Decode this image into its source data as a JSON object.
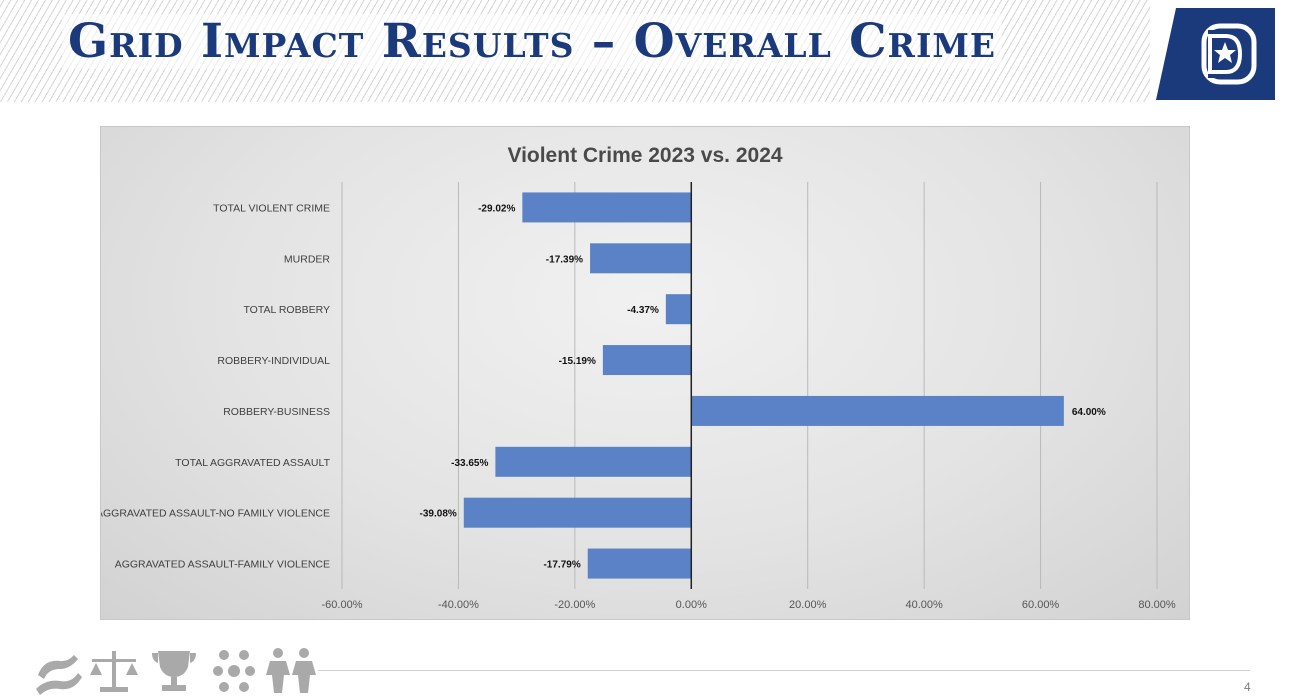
{
  "slide": {
    "title": "Grid Impact Results – Overall Crime",
    "page_number": "4"
  },
  "colors": {
    "title": "#1b3a7c",
    "bar": "#5b82c6",
    "logo_blue": "#1b3a7c"
  },
  "logo": {
    "icon": "dallas-d-star-logo"
  },
  "footer": {
    "icons": [
      "helping-hands-icon",
      "justice-scales-icon",
      "trophy-icon",
      "diversity-icon",
      "people-icon"
    ]
  },
  "chart_data": {
    "type": "bar",
    "orientation": "horizontal",
    "title": "Violent Crime 2023 vs. 2024",
    "categories": [
      "TOTAL VIOLENT CRIME",
      "MURDER",
      "TOTAL ROBBERY",
      "ROBBERY-INDIVIDUAL",
      "ROBBERY-BUSINESS",
      "TOTAL AGGRAVATED ASSAULT",
      "AGGRAVATED ASSAULT-NO FAMILY VIOLENCE",
      "AGGRAVATED ASSAULT-FAMILY VIOLENCE"
    ],
    "values": [
      -29.02,
      -17.39,
      -4.37,
      -15.19,
      64.0,
      -33.65,
      -39.08,
      -17.79
    ],
    "value_labels": [
      "-29.02%",
      "-17.39%",
      "-4.37%",
      "-15.19%",
      "64.00%",
      "-33.65%",
      "-39.08%",
      "-17.79%"
    ],
    "xlim": [
      -60,
      80
    ],
    "x_ticks": [
      -60,
      -40,
      -20,
      0,
      20,
      40,
      60,
      80
    ],
    "x_tick_labels": [
      "-60.00%",
      "-40.00%",
      "-20.00%",
      "0.00%",
      "20.00%",
      "40.00%",
      "60.00%",
      "80.00%"
    ],
    "grid": true,
    "legend": false
  }
}
